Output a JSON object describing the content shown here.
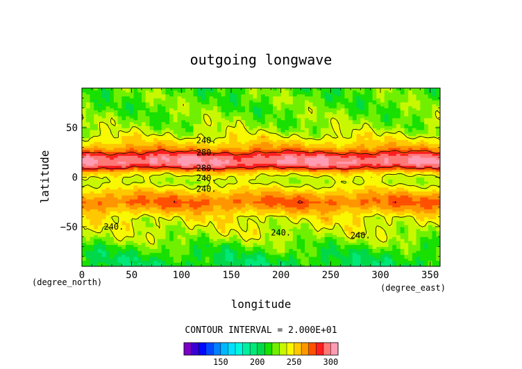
{
  "chart_data": {
    "type": "heatmap",
    "title": "outgoing longwave",
    "xlabel": "longitude",
    "ylabel": "latitude",
    "x_unit": "(degree_east)",
    "y_unit": "(degree_north)",
    "xlim": [
      0,
      360
    ],
    "ylim": [
      -90,
      90
    ],
    "x_ticks": [
      0,
      50,
      100,
      150,
      200,
      250,
      300,
      350
    ],
    "y_ticks": [
      -50,
      0,
      50
    ],
    "contour_interval_text": "CONTOUR INTERVAL = 2.000E+01",
    "contour_levels": [
      240,
      280
    ],
    "contour_labels": [
      {
        "text": "240.",
        "lon": 125,
        "lat": 37
      },
      {
        "text": "280.",
        "lon": 125,
        "lat": 25
      },
      {
        "text": "280.",
        "lon": 125,
        "lat": 9
      },
      {
        "text": "240.",
        "lon": 125,
        "lat": -1
      },
      {
        "text": "240.",
        "lon": 125,
        "lat": -12
      },
      {
        "text": "240.",
        "lon": 32,
        "lat": -50
      },
      {
        "text": "240.",
        "lon": 200,
        "lat": -56
      },
      {
        "text": "240.",
        "lon": 280,
        "lat": -59
      }
    ],
    "latitude_profile": {
      "lat": [
        -90,
        -80,
        -70,
        -60,
        -50,
        -40,
        -35,
        -30,
        -25,
        -20,
        -15,
        -10,
        -5,
        0,
        5,
        10,
        15,
        20,
        25,
        30,
        35,
        40,
        45,
        50,
        60,
        70,
        80,
        90
      ],
      "value": [
        205,
        210,
        220,
        232,
        238,
        245,
        255,
        265,
        272,
        266,
        256,
        245,
        235,
        238,
        252,
        285,
        300,
        298,
        280,
        262,
        252,
        244,
        236,
        230,
        226,
        222,
        222,
        220
      ]
    },
    "colorbar": {
      "labels": [
        150,
        200,
        250,
        300
      ],
      "colors": [
        "#7a00c8",
        "#3a00d0",
        "#0008ff",
        "#0048ff",
        "#0080ff",
        "#00b8ff",
        "#00e0ff",
        "#00f8e0",
        "#00f0a0",
        "#00e878",
        "#00d84a",
        "#18e000",
        "#70f000",
        "#c8f800",
        "#f8f800",
        "#ffc800",
        "#ff9600",
        "#ff5000",
        "#ff1e1e",
        "#ff7878",
        "#ff9cb4"
      ],
      "min": 100,
      "step": 10
    }
  }
}
